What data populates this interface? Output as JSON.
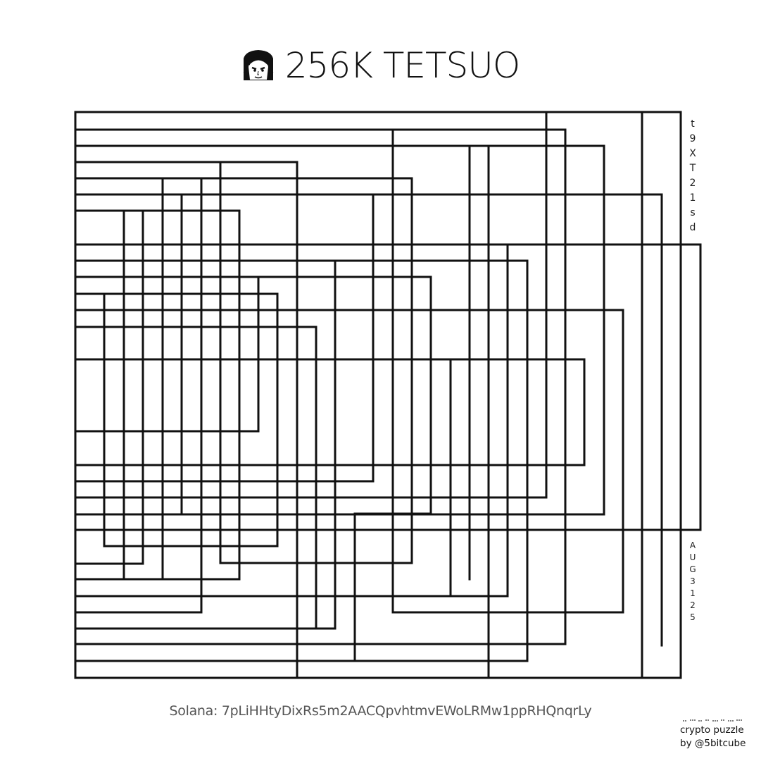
{
  "header": {
    "title": "256K TETSUO",
    "avatar_icon": "manga-face-icon"
  },
  "side_codes": {
    "top": [
      "t",
      "9",
      "X",
      "T",
      "2",
      "1",
      "s",
      "d"
    ],
    "bottom": [
      "A",
      "U",
      "G",
      "3",
      "1",
      "2",
      "5"
    ]
  },
  "footer": {
    "address": "Solana: 7pLiHHtyDixRs5m2AACQpvhtmvEWoLRMw1ppRHQnqrLy",
    "credit_line1": "crypto puzzle",
    "credit_line2": "by @5bitcube"
  },
  "colors": {
    "line": "#111111",
    "background": "#ffffff",
    "address_text": "#555555"
  }
}
